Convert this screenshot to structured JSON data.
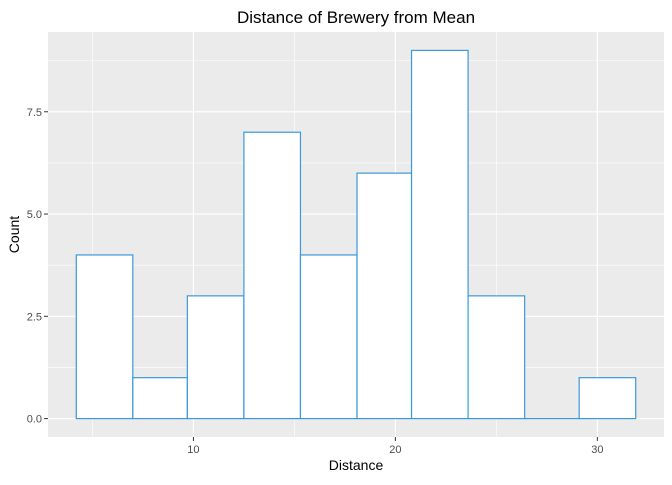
{
  "chart_data": {
    "type": "bar",
    "title": "Distance of Brewery from Mean",
    "xlabel": "Distance",
    "ylabel": "Count",
    "bins": [
      {
        "x0": 4.2,
        "x1": 7.0,
        "count": 4
      },
      {
        "x0": 7.0,
        "x1": 9.7,
        "count": 1
      },
      {
        "x0": 9.7,
        "x1": 12.5,
        "count": 3
      },
      {
        "x0": 12.5,
        "x1": 15.3,
        "count": 7
      },
      {
        "x0": 15.3,
        "x1": 18.1,
        "count": 4
      },
      {
        "x0": 18.1,
        "x1": 20.8,
        "count": 6
      },
      {
        "x0": 20.8,
        "x1": 23.6,
        "count": 9
      },
      {
        "x0": 23.6,
        "x1": 26.4,
        "count": 3
      },
      {
        "x0": 26.4,
        "x1": 29.1,
        "count": 0
      },
      {
        "x0": 29.1,
        "x1": 31.9,
        "count": 1
      }
    ],
    "xlim": [
      2.8,
      33.3
    ],
    "ylim": [
      -0.45,
      9.45
    ],
    "x_ticks": [
      10,
      20,
      30
    ],
    "x_tick_labels": [
      "10",
      "20",
      "30"
    ],
    "y_ticks": [
      0,
      2.5,
      5,
      7.5
    ],
    "y_tick_labels": [
      "0.0",
      "2.5",
      "5.0",
      "7.5"
    ],
    "grid": true,
    "legend": "none",
    "colors": {
      "panel_background": "#ebebeb",
      "grid_major": "#ffffff",
      "bar_fill": "#ffffff",
      "bar_outline": "#3a9ad9",
      "tick_mark": "#333333",
      "tick_label": "#4d4d4d"
    }
  }
}
